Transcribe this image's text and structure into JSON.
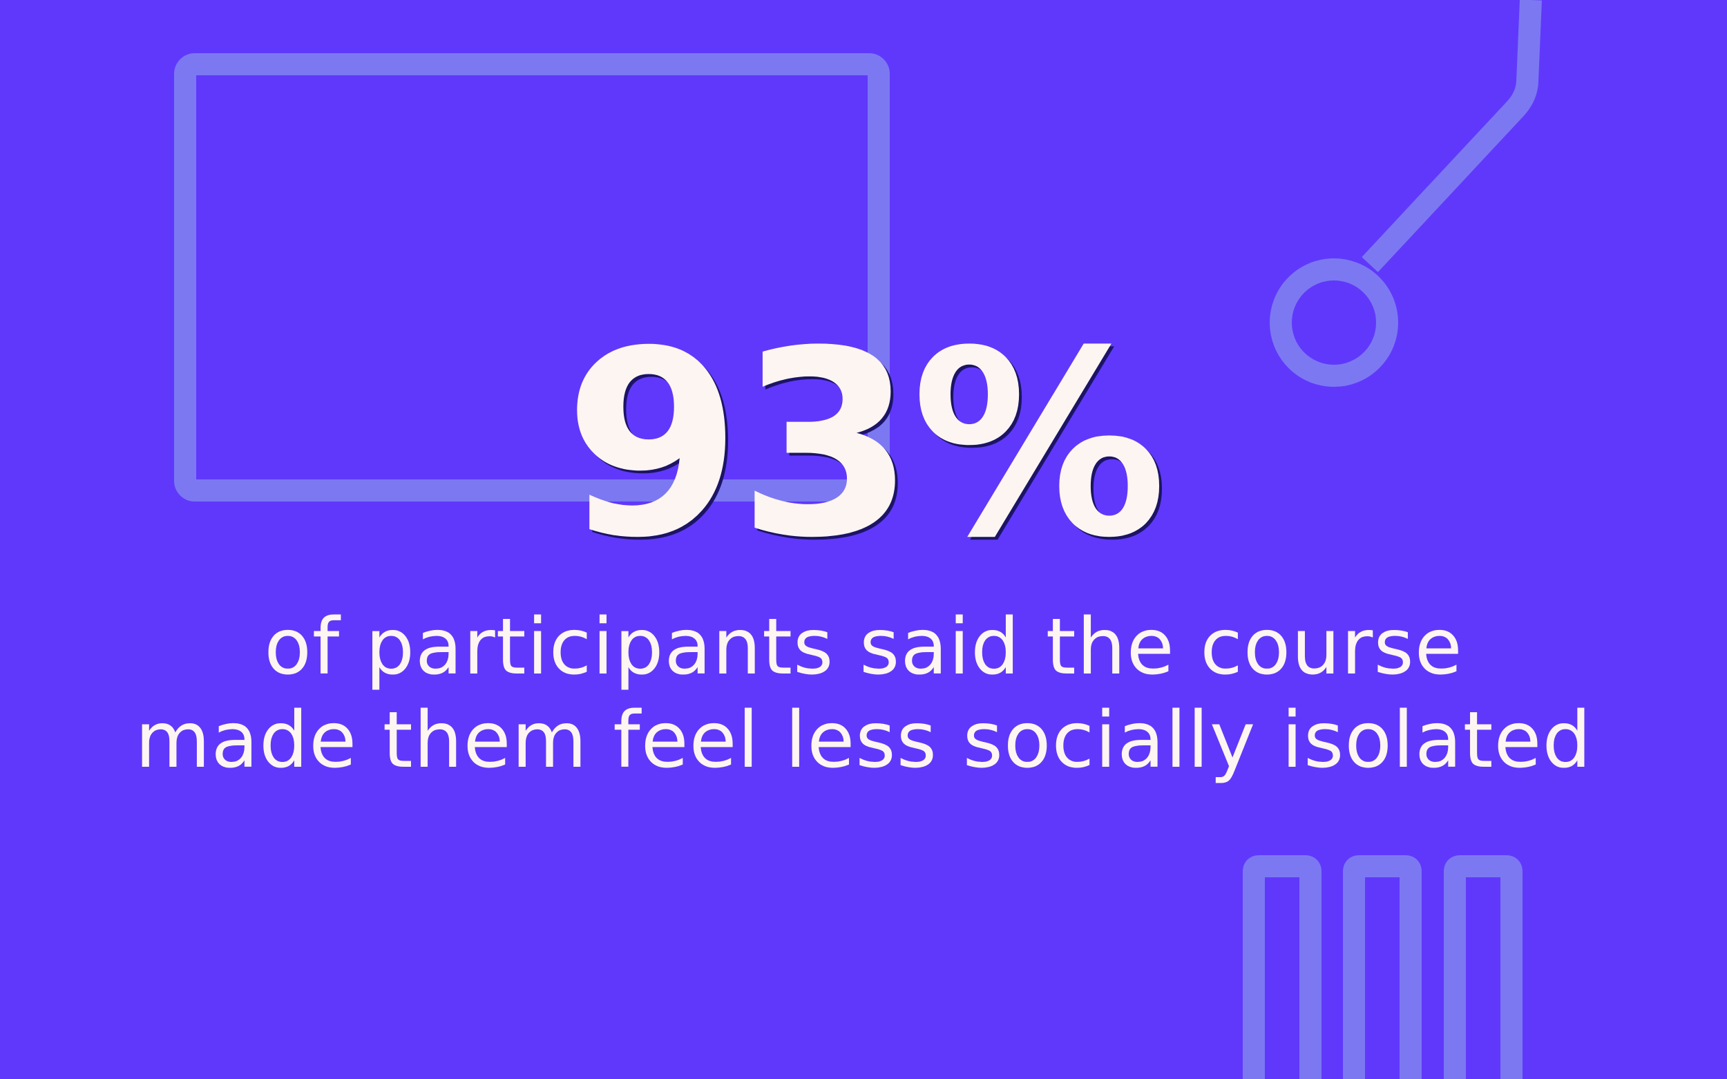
{
  "colors": {
    "background": "#6038fb",
    "outline": "#7c78f2",
    "text": "#fdf5f2",
    "shadow": "#1c1466"
  },
  "icons": [
    "rectangle-frame-outline",
    "circle-node-outline",
    "bar-outline"
  ],
  "stat": {
    "value": "93%"
  },
  "caption": {
    "line1": "of participants said the course",
    "line2": "made them feel less socially isolated"
  }
}
